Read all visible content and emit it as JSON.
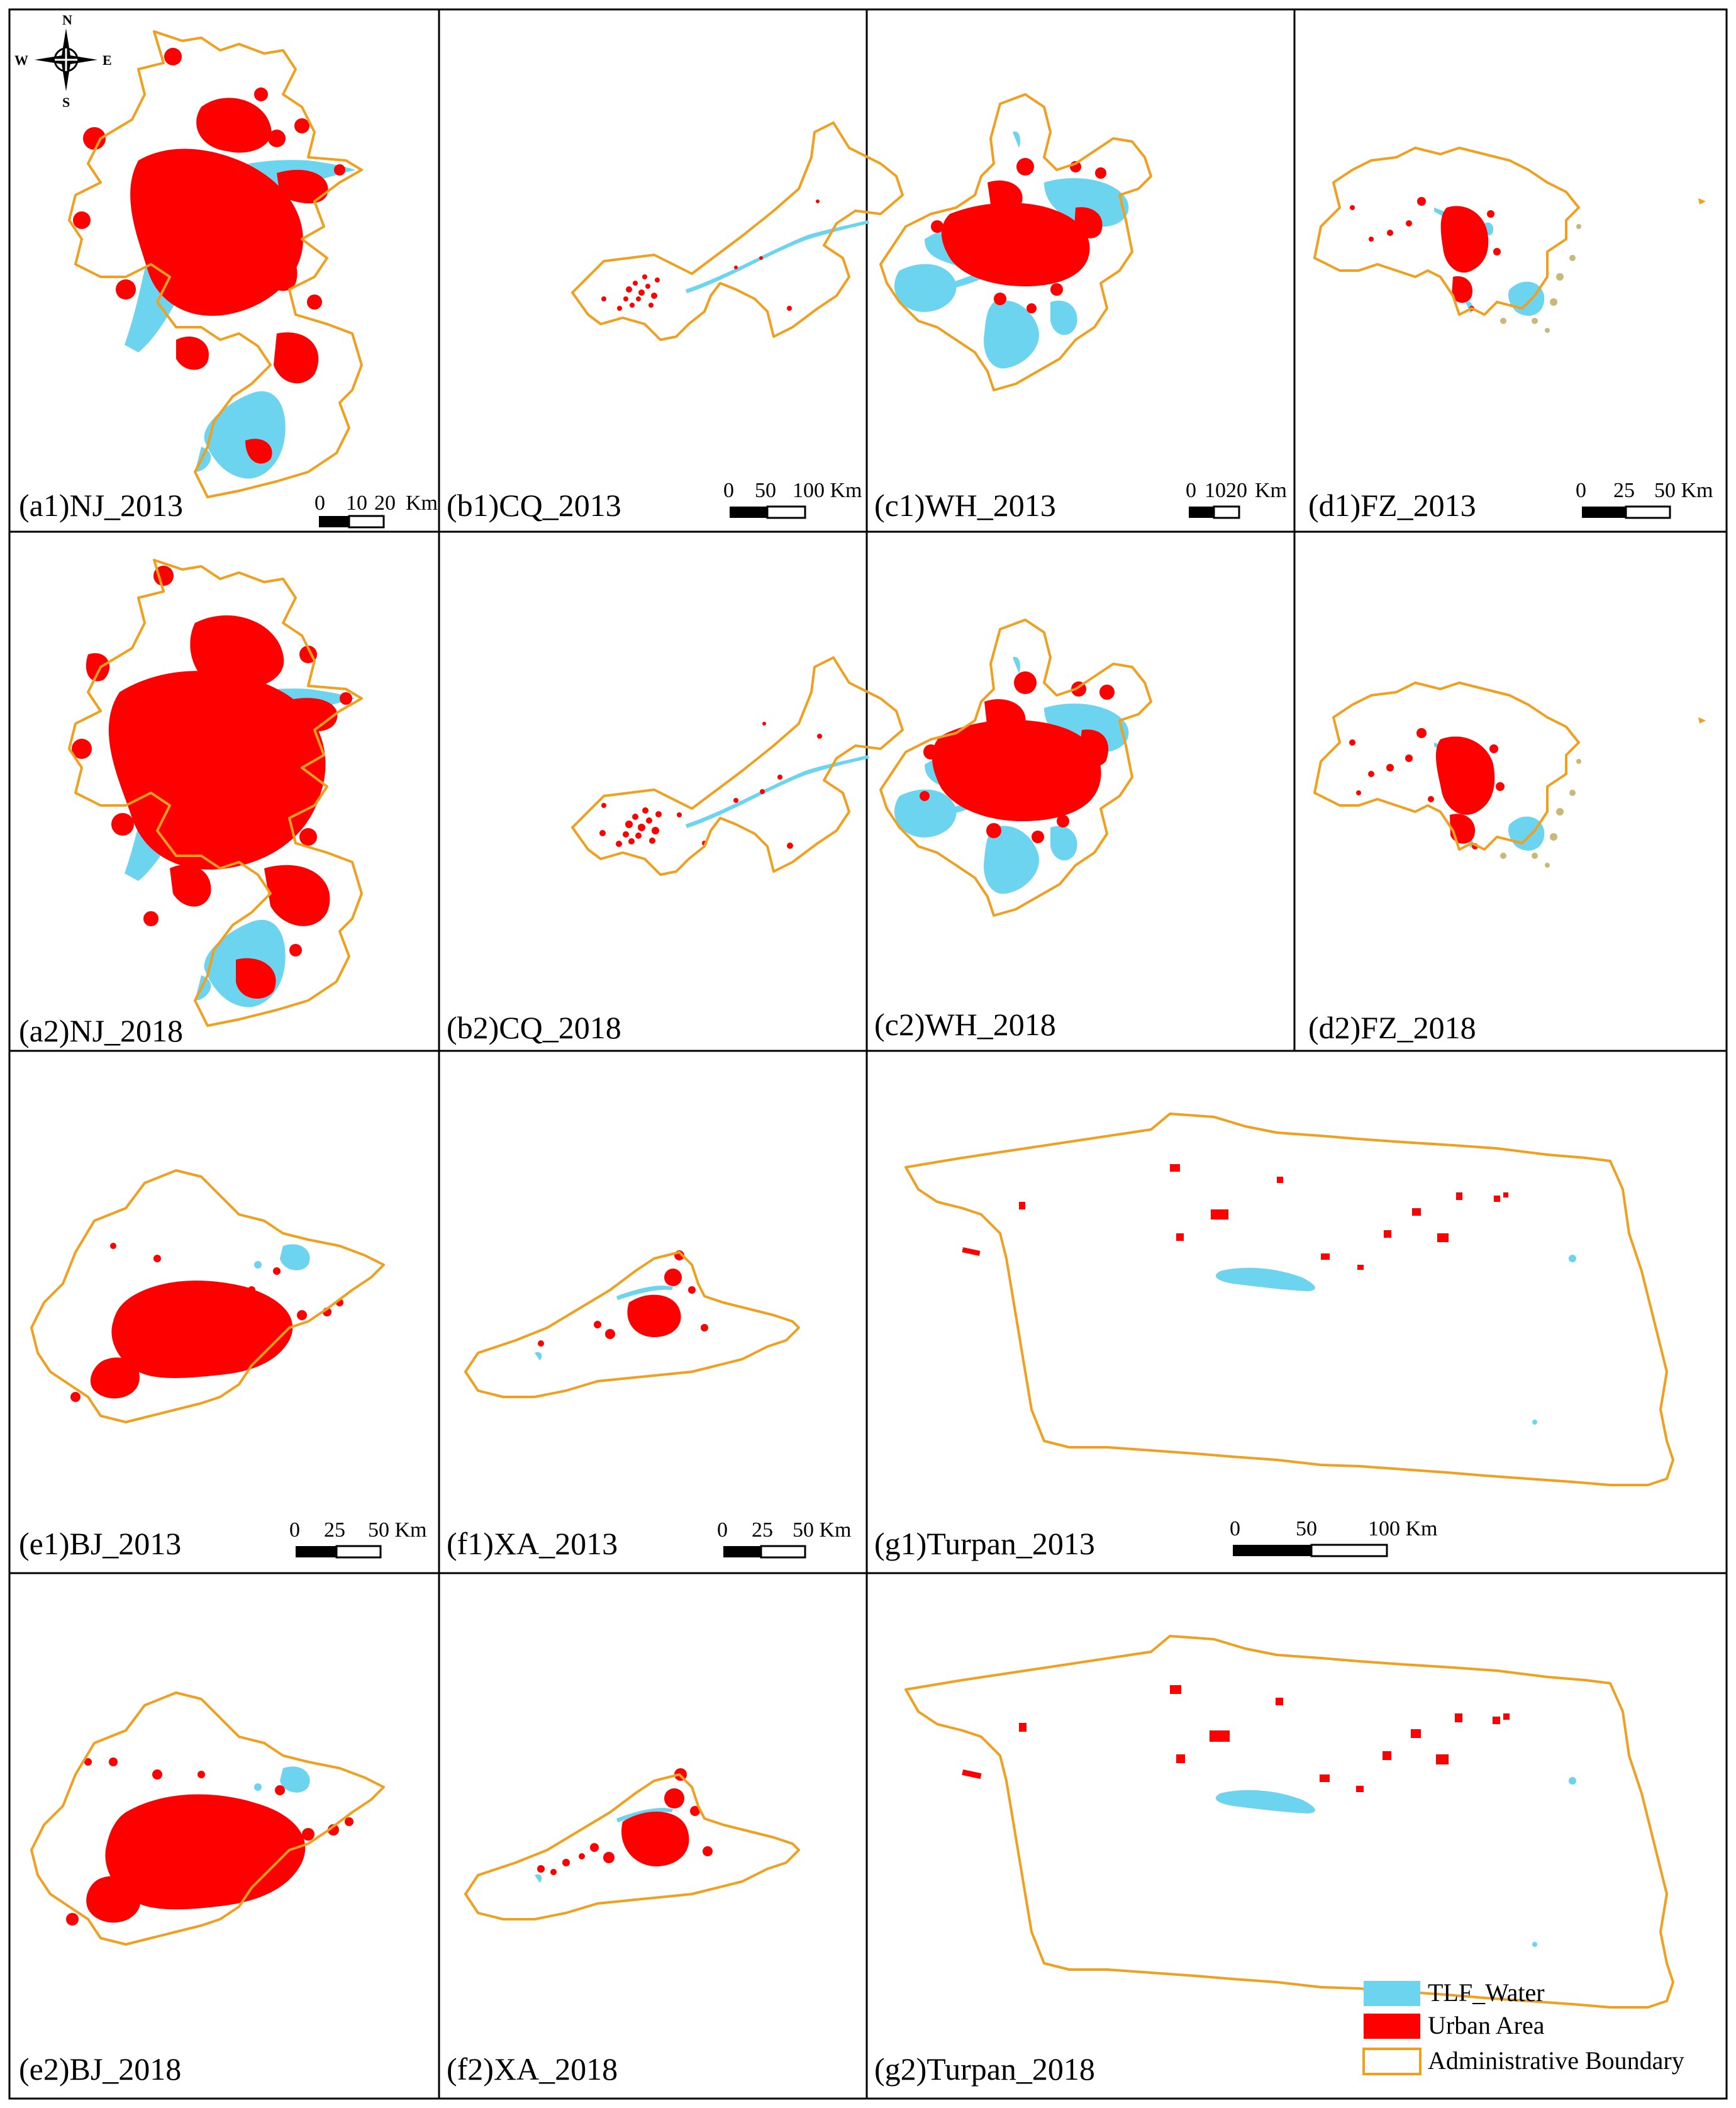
{
  "panels": {
    "a1": {
      "label": "(a1)NJ_2013",
      "scale": [
        "0",
        "10",
        "20",
        "Km"
      ]
    },
    "b1": {
      "label": "(b1)CQ_2013",
      "scale": [
        "0",
        "50",
        "100 Km"
      ]
    },
    "c1": {
      "label": "(c1)WH_2013",
      "scale": [
        "0",
        "1020",
        "Km"
      ]
    },
    "d1": {
      "label": "(d1)FZ_2013",
      "scale": [
        "0",
        "25",
        "50 Km"
      ]
    },
    "a2": {
      "label": "(a2)NJ_2018"
    },
    "b2": {
      "label": "(b2)CQ_2018"
    },
    "c2": {
      "label": "(c2)WH_2018"
    },
    "d2": {
      "label": "(d2)FZ_2018"
    },
    "e1": {
      "label": "(e1)BJ_2013",
      "scale": [
        "0",
        "25",
        "50 Km"
      ]
    },
    "f1": {
      "label": "(f1)XA_2013",
      "scale": [
        "0",
        "25",
        "50 Km"
      ]
    },
    "g1": {
      "label": "(g1)Turpan_2013",
      "scale": [
        "0",
        "50",
        "100 Km"
      ]
    },
    "e2": {
      "label": "(e2)BJ_2018"
    },
    "f2": {
      "label": "(f2)XA_2018"
    },
    "g2": {
      "label": "(g2)Turpan_2018"
    }
  },
  "compass": {
    "n": "N",
    "s": "S",
    "e": "E",
    "w": "W"
  },
  "legend": {
    "water": "TLF_Water",
    "urban": "Urban Area",
    "boundary": "Administrative Boundary"
  },
  "colors": {
    "water": "#6cd4ee",
    "urban": "#ff0000",
    "boundary": "#f0a020"
  }
}
